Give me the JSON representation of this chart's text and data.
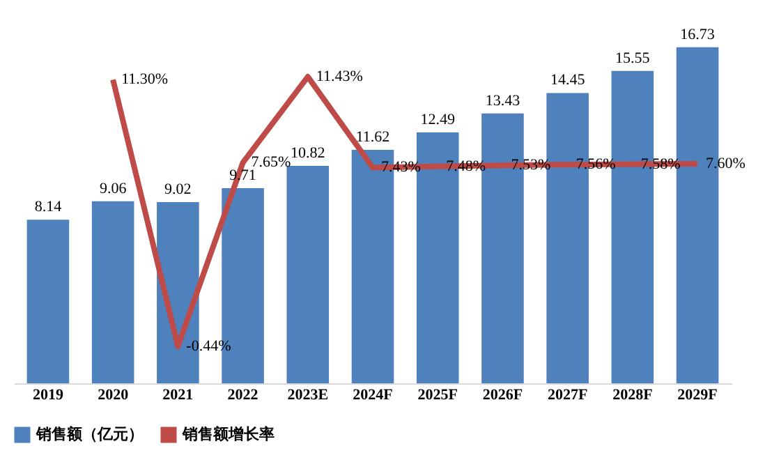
{
  "chart_data": {
    "type": "bar",
    "categories": [
      "2019",
      "2020",
      "2021",
      "2022",
      "2023E",
      "2024F",
      "2025F",
      "2026F",
      "2027F",
      "2028F",
      "2029F"
    ],
    "series": [
      {
        "name": "销售额（亿元）",
        "color": "#4f81bd",
        "values": [
          8.14,
          9.06,
          9.02,
          9.71,
          10.82,
          11.62,
          12.49,
          13.43,
          14.45,
          15.55,
          16.73
        ],
        "value_labels": [
          "8.14",
          "9.06",
          "9.02",
          "9.71",
          "10.82",
          "11.62",
          "12.49",
          "13.43",
          "14.45",
          "15.55",
          "16.73"
        ]
      },
      {
        "name": "销售额增长率",
        "type": "line",
        "axis": "y2",
        "color": "#be4b48",
        "values": [
          null,
          11.3,
          -0.44,
          7.65,
          11.43,
          7.43,
          7.48,
          7.53,
          7.56,
          7.58,
          7.6
        ],
        "value_labels": [
          null,
          "11.30%",
          "-0.44%",
          "7.65%",
          "11.43%",
          "7.43%",
          "7.48%",
          "7.53%",
          "7.56%",
          "7.58%",
          "7.60%"
        ]
      }
    ],
    "tick_labels": "x",
    "grid": false,
    "legend": "bottom",
    "marker": "none"
  }
}
